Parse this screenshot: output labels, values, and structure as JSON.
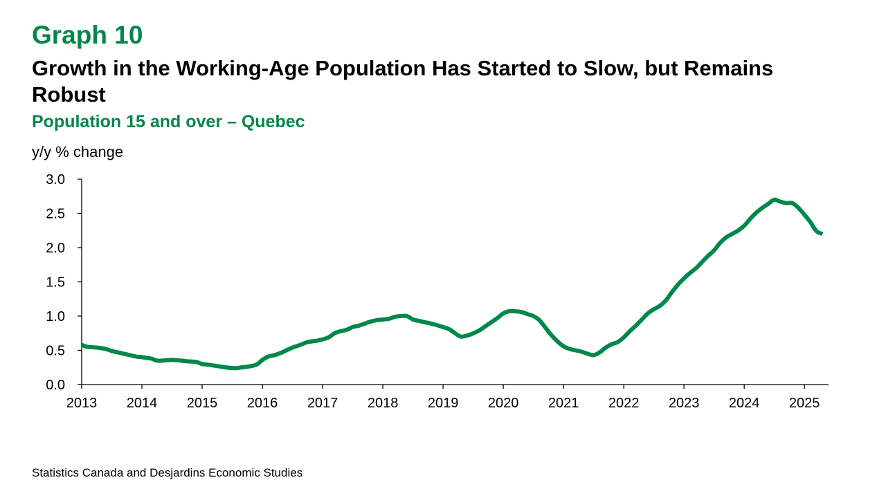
{
  "header": {
    "graph_label": "Graph 10",
    "title": "Growth in the Working-Age Population Has Started to Slow, but Remains Robust",
    "subtitle": "Population 15 and over – Quebec",
    "y_unit": "y/y % change"
  },
  "footer": {
    "source": "Statistics Canada and Desjardins Economic Studies"
  },
  "colors": {
    "accent": "#00874A",
    "line": "#00874A",
    "axis": "#000000"
  },
  "chart_data": {
    "type": "line",
    "title": "Growth in the Working-Age Population Has Started to Slow, but Remains Robust",
    "subtitle": "Population 15 and over – Quebec",
    "ylabel": "y/y % change",
    "xlabel": "",
    "xlim": [
      2013,
      2025.4
    ],
    "ylim": [
      0,
      3
    ],
    "grid": false,
    "legend": "none",
    "x_ticks": [
      "2013",
      "2014",
      "2015",
      "2016",
      "2017",
      "2018",
      "2019",
      "2020",
      "2021",
      "2022",
      "2023",
      "2024",
      "2025"
    ],
    "y_ticks": [
      "0.0",
      "0.5",
      "1.0",
      "1.5",
      "2.0",
      "2.5",
      "3.0"
    ],
    "series": [
      {
        "x": [
          2013.0,
          2013.1,
          2013.25,
          2013.4,
          2013.5,
          2013.6,
          2013.75,
          2013.9,
          2014.0,
          2014.15,
          2014.25,
          2014.35,
          2014.5,
          2014.65,
          2014.75,
          2014.9,
          2015.0,
          2015.1,
          2015.25,
          2015.4,
          2015.55,
          2015.65,
          2015.75,
          2015.9,
          2016.0,
          2016.1,
          2016.2,
          2016.3,
          2016.4,
          2016.5,
          2016.6,
          2016.75,
          2016.9,
          2017.0,
          2017.1,
          2017.2,
          2017.3,
          2017.4,
          2017.5,
          2017.6,
          2017.7,
          2017.8,
          2017.9,
          2018.0,
          2018.1,
          2018.2,
          2018.3,
          2018.4,
          2018.5,
          2018.6,
          2018.7,
          2018.85,
          2019.0,
          2019.1,
          2019.2,
          2019.3,
          2019.45,
          2019.6,
          2019.7,
          2019.8,
          2019.9,
          2020.0,
          2020.1,
          2020.2,
          2020.3,
          2020.4,
          2020.5,
          2020.6,
          2020.7,
          2020.8,
          2020.9,
          2021.0,
          2021.1,
          2021.2,
          2021.3,
          2021.4,
          2021.5,
          2021.6,
          2021.7,
          2021.8,
          2021.9,
          2022.0,
          2022.1,
          2022.2,
          2022.3,
          2022.4,
          2022.5,
          2022.6,
          2022.7,
          2022.8,
          2022.9,
          2023.0,
          2023.1,
          2023.2,
          2023.3,
          2023.4,
          2023.5,
          2023.6,
          2023.7,
          2023.8,
          2023.9,
          2024.0,
          2024.1,
          2024.2,
          2024.3,
          2024.4,
          2024.5,
          2024.6,
          2024.7,
          2024.8,
          2024.9,
          2025.0,
          2025.1,
          2025.2,
          2025.3
        ],
        "values": [
          0.58,
          0.55,
          0.54,
          0.52,
          0.49,
          0.47,
          0.44,
          0.41,
          0.4,
          0.38,
          0.35,
          0.35,
          0.36,
          0.35,
          0.34,
          0.33,
          0.3,
          0.29,
          0.27,
          0.25,
          0.24,
          0.25,
          0.26,
          0.29,
          0.36,
          0.41,
          0.43,
          0.46,
          0.5,
          0.54,
          0.57,
          0.62,
          0.64,
          0.66,
          0.69,
          0.75,
          0.78,
          0.8,
          0.84,
          0.86,
          0.89,
          0.92,
          0.94,
          0.95,
          0.96,
          0.99,
          1.0,
          1.0,
          0.95,
          0.93,
          0.91,
          0.88,
          0.84,
          0.81,
          0.75,
          0.7,
          0.73,
          0.79,
          0.85,
          0.91,
          0.97,
          1.04,
          1.07,
          1.07,
          1.06,
          1.03,
          1.0,
          0.94,
          0.83,
          0.72,
          0.63,
          0.56,
          0.52,
          0.5,
          0.48,
          0.45,
          0.43,
          0.47,
          0.54,
          0.59,
          0.62,
          0.69,
          0.78,
          0.86,
          0.95,
          1.04,
          1.1,
          1.15,
          1.23,
          1.35,
          1.46,
          1.55,
          1.63,
          1.7,
          1.79,
          1.88,
          1.96,
          2.07,
          2.15,
          2.2,
          2.25,
          2.32,
          2.42,
          2.51,
          2.58,
          2.64,
          2.7,
          2.67,
          2.65,
          2.65,
          2.58,
          2.48,
          2.37,
          2.24,
          2.2
        ]
      }
    ]
  }
}
